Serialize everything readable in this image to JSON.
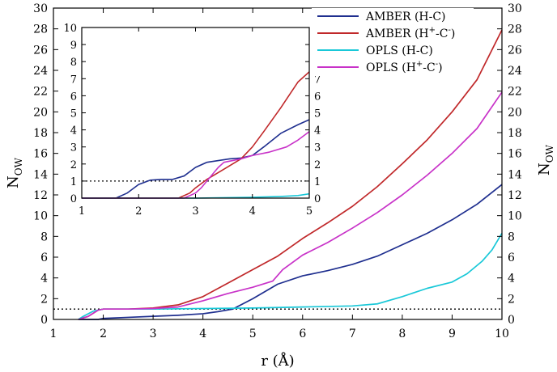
{
  "chart_data": [
    {
      "type": "line",
      "role": "main",
      "xlabel": "r (Å)",
      "ylabel_main": "N",
      "ylabel_sub": "OW",
      "xlim": [
        1,
        10
      ],
      "ylim": [
        0,
        30
      ],
      "x_ticks": [
        1,
        2,
        3,
        4,
        5,
        6,
        7,
        8,
        9,
        10
      ],
      "y_ticks": [
        0,
        2,
        4,
        6,
        8,
        10,
        12,
        14,
        16,
        18,
        20,
        22,
        24,
        26,
        28,
        30
      ],
      "reference_line_y": 1,
      "legend_position": "top-right",
      "series": [
        {
          "name_main": "AMBER (H-C)",
          "color": "#1f2f8f",
          "x": [
            1.5,
            1.9,
            2.0,
            2.5,
            3.0,
            3.5,
            4.0,
            4.3,
            4.6,
            5.0,
            5.5,
            6.0,
            6.5,
            7.0,
            7.5,
            8.0,
            8.5,
            9.0,
            9.5,
            10.0
          ],
          "y": [
            0,
            0,
            0.1,
            0.2,
            0.3,
            0.4,
            0.55,
            0.75,
            1.0,
            2.0,
            3.4,
            4.2,
            4.7,
            5.3,
            6.1,
            7.2,
            8.3,
            9.6,
            11.1,
            13.0
          ]
        },
        {
          "name_main": "AMBER (H",
          "name_sup1": "+",
          "name_mid": "-C",
          "name_sup2": "-",
          "name_end": ")",
          "color": "#c0282a",
          "x": [
            1.5,
            1.7,
            1.9,
            2.0,
            2.5,
            3.0,
            3.5,
            4.0,
            4.5,
            5.0,
            5.5,
            6.0,
            6.5,
            7.0,
            7.5,
            8.0,
            8.5,
            9.0,
            9.5,
            10.0
          ],
          "y": [
            0,
            0.3,
            0.9,
            1.0,
            1.0,
            1.1,
            1.4,
            2.2,
            3.5,
            4.8,
            6.1,
            7.8,
            9.3,
            10.9,
            12.8,
            15.0,
            17.3,
            20.0,
            23.1,
            27.9
          ]
        },
        {
          "name_main": "OPLS (H-C)",
          "color": "#19c8d8",
          "x": [
            1.5,
            1.6,
            1.8,
            2.0,
            2.5,
            3.0,
            4.0,
            5.0,
            6.0,
            7.0,
            7.5,
            8.0,
            8.5,
            9.0,
            9.3,
            9.6,
            9.8,
            10.0
          ],
          "y": [
            0,
            0.3,
            0.8,
            1.0,
            1.0,
            1.0,
            1.05,
            1.1,
            1.2,
            1.3,
            1.5,
            2.2,
            3.0,
            3.6,
            4.4,
            5.6,
            6.7,
            8.3
          ]
        },
        {
          "name_main": "OPLS (H",
          "name_sup1": "+",
          "name_mid": "-C",
          "name_sup2": "-",
          "name_end": ")",
          "color": "#c832c8",
          "x": [
            1.5,
            1.7,
            1.9,
            2.0,
            2.5,
            3.0,
            3.5,
            4.0,
            4.5,
            5.0,
            5.4,
            5.6,
            5.8,
            6.0,
            6.5,
            7.0,
            7.5,
            8.0,
            8.5,
            9.0,
            9.5,
            10.0
          ],
          "y": [
            0,
            0.3,
            0.9,
            1.0,
            1.0,
            1.05,
            1.2,
            1.8,
            2.5,
            3.1,
            3.7,
            4.8,
            5.5,
            6.2,
            7.4,
            8.8,
            10.3,
            12.0,
            13.9,
            16.0,
            18.4,
            21.9
          ]
        }
      ]
    },
    {
      "type": "line",
      "role": "inset",
      "xlim": [
        1,
        5
      ],
      "ylim": [
        0,
        10
      ],
      "x_ticks": [
        1,
        2,
        3,
        4,
        5
      ],
      "y_ticks": [
        0,
        1,
        2,
        3,
        4,
        5,
        6,
        7,
        8,
        9,
        10
      ],
      "reference_line_y": 1,
      "series": [
        {
          "name_main": "AMBER (H-C)",
          "color": "#1f2f8f",
          "x": [
            1.0,
            1.6,
            1.8,
            2.0,
            2.2,
            2.4,
            2.6,
            2.8,
            3.0,
            3.2,
            3.4,
            3.6,
            3.8,
            4.0,
            4.2,
            4.5,
            4.8,
            5.0
          ],
          "y": [
            0,
            0,
            0.3,
            0.8,
            1.05,
            1.1,
            1.1,
            1.3,
            1.8,
            2.1,
            2.2,
            2.3,
            2.35,
            2.5,
            3.0,
            3.8,
            4.3,
            4.6
          ]
        },
        {
          "name_main": "AMBER (H",
          "name_sup1": "+",
          "name_mid": "-C",
          "name_sup2": "-",
          "name_end": ")",
          "color": "#c0282a",
          "x": [
            1.0,
            2.7,
            2.9,
            3.0,
            3.2,
            3.5,
            3.8,
            4.0,
            4.2,
            4.5,
            4.8,
            5.0
          ],
          "y": [
            0,
            0,
            0.3,
            0.6,
            1.1,
            1.7,
            2.3,
            3.0,
            3.9,
            5.3,
            6.8,
            7.4
          ]
        },
        {
          "name_main": "OPLS (H-C)",
          "color": "#19c8d8",
          "x": [
            1.0,
            3.0,
            4.0,
            4.5,
            4.8,
            5.0
          ],
          "y": [
            0,
            0,
            0.05,
            0.1,
            0.15,
            0.25
          ]
        },
        {
          "name_main": "OPLS (H",
          "name_sup1": "+",
          "name_mid": "-C",
          "name_sup2": "-",
          "name_end": ")",
          "color": "#c832c8",
          "x": [
            1.0,
            2.8,
            3.0,
            3.1,
            3.2,
            3.4,
            3.5,
            3.8,
            4.0,
            4.3,
            4.6,
            4.8,
            5.0
          ],
          "y": [
            0,
            0,
            0.3,
            0.6,
            1.0,
            1.8,
            2.1,
            2.3,
            2.5,
            2.7,
            3.0,
            3.4,
            3.9
          ]
        }
      ]
    }
  ]
}
